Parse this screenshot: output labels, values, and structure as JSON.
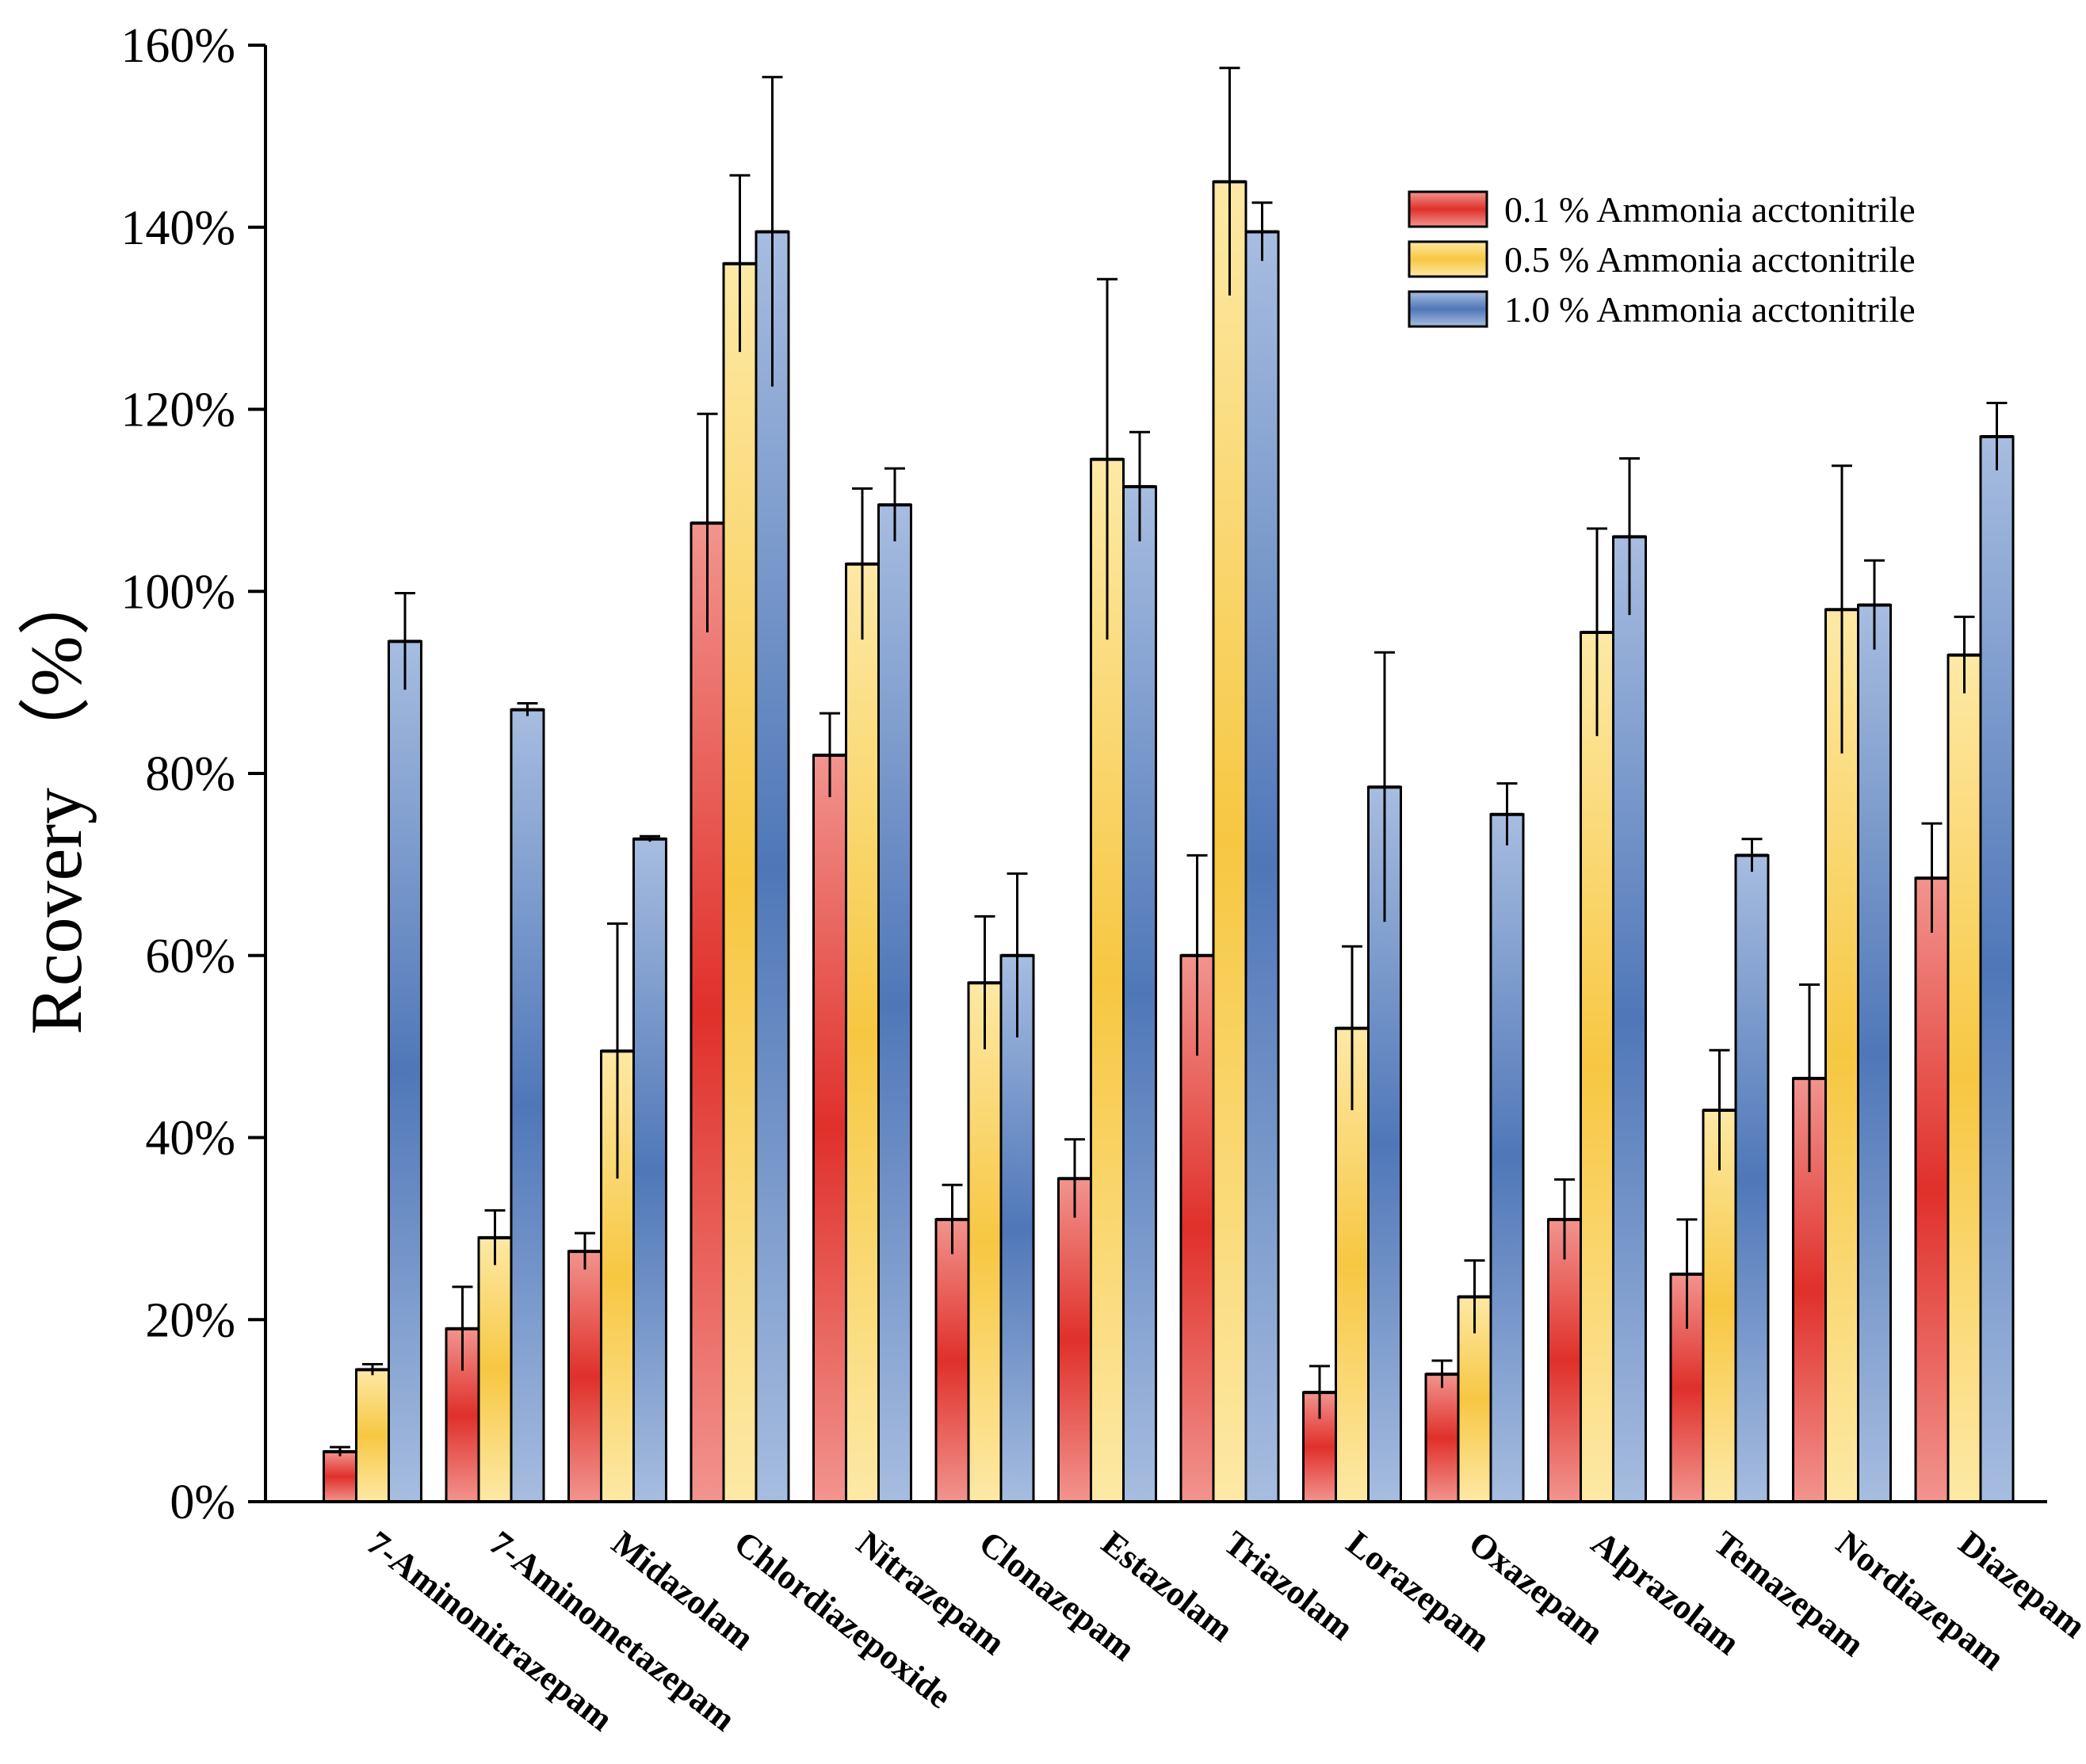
{
  "chart_data": {
    "type": "bar",
    "title": "",
    "xlabel": "",
    "ylabel": "Rcovery （%）",
    "ylim": [
      0,
      160
    ],
    "y_ticks": [
      0,
      20,
      40,
      60,
      80,
      100,
      120,
      140,
      160
    ],
    "y_tick_labels": [
      "0%",
      "20%",
      "40%",
      "60%",
      "80%",
      "100%",
      "120%",
      "140%",
      "160%"
    ],
    "grid": false,
    "legend_position": "top-right",
    "categories": [
      "7-Aminonitrazepam",
      "7-Aminometazepam",
      "Midazolam",
      "Chlordiazepoxide",
      "Nitrazepam",
      "Clonazepam",
      "Estazolam",
      "Triazolam",
      "Lorazepam",
      "Oxazepam",
      "Alprazolam",
      "Temazepam",
      "Nordiazepam",
      "Diazepam"
    ],
    "series": [
      {
        "name": "0.1 %  Ammonia acctonitrile",
        "color_dark": "#e0302a",
        "color_light": "#f2948e",
        "values": [
          5.5,
          19,
          27.5,
          107.5,
          82,
          31,
          35.5,
          60,
          12,
          14,
          31,
          25,
          46.5,
          68.5
        ],
        "errors": [
          0.5,
          4.6,
          2,
          12,
          4.6,
          3.8,
          4.3,
          11,
          2.9,
          1.5,
          4.4,
          6,
          10.3,
          6
        ]
      },
      {
        "name": "0.5 %  Ammonia acctonitrile",
        "color_dark": "#f7c742",
        "color_light": "#fde9a6",
        "values": [
          14.5,
          29,
          49.5,
          136,
          103,
          57,
          114.5,
          145,
          52,
          22.5,
          95.5,
          43,
          98,
          93
        ],
        "errors": [
          0.6,
          3,
          14,
          9.7,
          8.3,
          7.3,
          19.8,
          12.5,
          9,
          4,
          11.4,
          6.6,
          15.8,
          4.2
        ]
      },
      {
        "name": "1.0 %  Ammonia acctonitrile",
        "color_dark": "#4f77b8",
        "color_light": "#a7bde0",
        "values": [
          94.5,
          87,
          72.8,
          139.5,
          109.5,
          60,
          111.5,
          139.5,
          78.5,
          75.5,
          106,
          71,
          98.5,
          117
        ],
        "errors": [
          5.3,
          0.7,
          0.3,
          17,
          4,
          9,
          6,
          3.2,
          14.8,
          3.4,
          8.6,
          1.8,
          4.9,
          3.7
        ]
      }
    ]
  }
}
